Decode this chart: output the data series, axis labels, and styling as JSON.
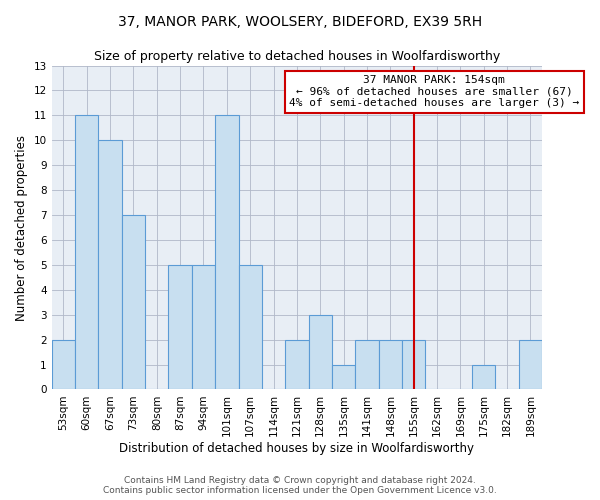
{
  "title": "37, MANOR PARK, WOOLSERY, BIDEFORD, EX39 5RH",
  "subtitle": "Size of property relative to detached houses in Woolfardisworthy",
  "xlabel": "Distribution of detached houses by size in Woolfardisworthy",
  "ylabel": "Number of detached properties",
  "bin_labels": [
    "53sqm",
    "60sqm",
    "67sqm",
    "73sqm",
    "80sqm",
    "87sqm",
    "94sqm",
    "101sqm",
    "107sqm",
    "114sqm",
    "121sqm",
    "128sqm",
    "135sqm",
    "141sqm",
    "148sqm",
    "155sqm",
    "162sqm",
    "169sqm",
    "175sqm",
    "182sqm",
    "189sqm"
  ],
  "bar_heights": [
    2,
    11,
    10,
    7,
    0,
    5,
    5,
    11,
    5,
    0,
    2,
    3,
    1,
    2,
    2,
    2,
    0,
    0,
    1,
    0,
    2
  ],
  "bar_color": "#c8dff0",
  "bar_edge_color": "#5b9bd5",
  "vline_position": 15,
  "vline_color": "#cc0000",
  "annotation_title": "37 MANOR PARK: 154sqm",
  "annotation_line1": "← 96% of detached houses are smaller (67)",
  "annotation_line2": "4% of semi-detached houses are larger (3) →",
  "annotation_box_color": "#ffffff",
  "annotation_box_edge": "#cc0000",
  "ylim": [
    0,
    13
  ],
  "yticks": [
    0,
    1,
    2,
    3,
    4,
    5,
    6,
    7,
    8,
    9,
    10,
    11,
    12,
    13
  ],
  "footer_line1": "Contains HM Land Registry data © Crown copyright and database right 2024.",
  "footer_line2": "Contains public sector information licensed under the Open Government Licence v3.0.",
  "title_fontsize": 10,
  "subtitle_fontsize": 9,
  "xlabel_fontsize": 8.5,
  "ylabel_fontsize": 8.5,
  "tick_fontsize": 7.5,
  "footer_fontsize": 6.5,
  "annotation_fontsize": 8,
  "bg_color": "#e8eef5"
}
